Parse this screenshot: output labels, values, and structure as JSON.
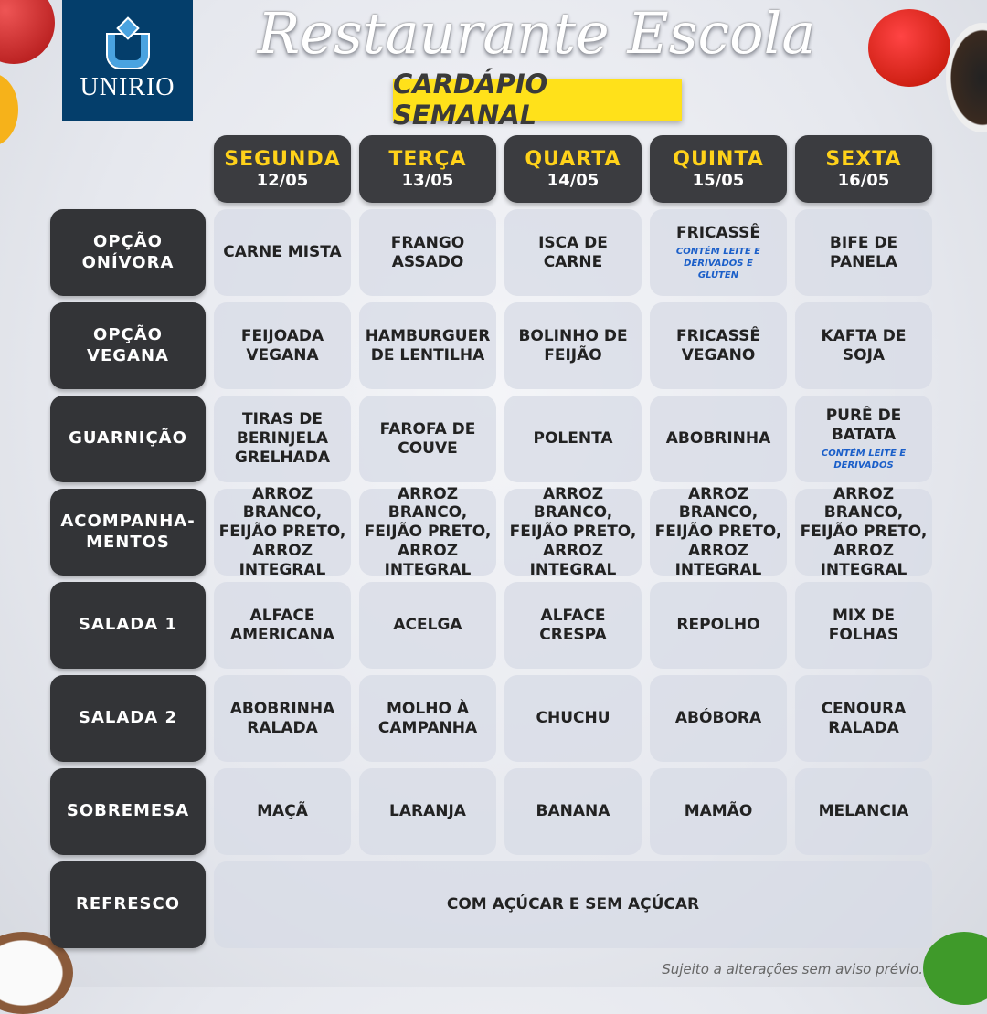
{
  "header": {
    "logo_text": "UNIRIO",
    "title": "Restaurante Escola",
    "subtitle": "CARDÁPIO SEMANAL"
  },
  "days": [
    {
      "name": "SEGUNDA",
      "date": "12/05"
    },
    {
      "name": "TERÇA",
      "date": "13/05"
    },
    {
      "name": "QUARTA",
      "date": "14/05"
    },
    {
      "name": "QUINTA",
      "date": "15/05"
    },
    {
      "name": "SEXTA",
      "date": "16/05"
    }
  ],
  "rows": [
    {
      "label": "OPÇÃO\nONÍVORA",
      "items": [
        {
          "text": "CARNE MISTA"
        },
        {
          "text": "FRANGO ASSADO"
        },
        {
          "text": "ISCA DE CARNE"
        },
        {
          "text": "FRICASSÊ",
          "note": "CONTÉM LEITE E DERIVADOS E GLÚTEN"
        },
        {
          "text": "BIFE DE PANELA"
        }
      ]
    },
    {
      "label": "OPÇÃO\nVEGANA",
      "items": [
        {
          "text": "FEIJOADA VEGANA"
        },
        {
          "text": "HAMBURGUER DE LENTILHA"
        },
        {
          "text": "BOLINHO DE FEIJÃO"
        },
        {
          "text": "FRICASSÊ VEGANO"
        },
        {
          "text": "KAFTA DE SOJA"
        }
      ]
    },
    {
      "label": "GUARNIÇÃO",
      "items": [
        {
          "text": "TIRAS DE BERINJELA GRELHADA"
        },
        {
          "text": "FAROFA DE COUVE"
        },
        {
          "text": "POLENTA"
        },
        {
          "text": "ABOBRINHA"
        },
        {
          "text": "PURÊ DE BATATA",
          "note": "CONTÉM LEITE E DERIVADOS"
        }
      ]
    },
    {
      "label": "ACOMPANHA-\nMENTOS",
      "items": [
        {
          "text": "ARROZ BRANCO, FEIJÃO PRETO, ARROZ INTEGRAL"
        },
        {
          "text": "ARROZ BRANCO, FEIJÃO PRETO, ARROZ INTEGRAL"
        },
        {
          "text": "ARROZ BRANCO, FEIJÃO PRETO, ARROZ INTEGRAL"
        },
        {
          "text": "ARROZ BRANCO, FEIJÃO PRETO, ARROZ INTEGRAL"
        },
        {
          "text": "ARROZ BRANCO, FEIJÃO PRETO, ARROZ INTEGRAL"
        }
      ]
    },
    {
      "label": "SALADA 1",
      "items": [
        {
          "text": "ALFACE AMERICANA"
        },
        {
          "text": "ACELGA"
        },
        {
          "text": "ALFACE CRESPA"
        },
        {
          "text": "REPOLHO"
        },
        {
          "text": "MIX DE FOLHAS"
        }
      ]
    },
    {
      "label": "SALADA 2",
      "items": [
        {
          "text": "ABOBRINHA RALADA"
        },
        {
          "text": "MOLHO À CAMPANHA"
        },
        {
          "text": "CHUCHU"
        },
        {
          "text": "ABÓBORA"
        },
        {
          "text": "CENOURA RALADA"
        }
      ]
    },
    {
      "label": "SOBREMESA",
      "items": [
        {
          "text": "MAÇÃ"
        },
        {
          "text": "LARANJA"
        },
        {
          "text": "BANANA"
        },
        {
          "text": "MAMÃO"
        },
        {
          "text": "MELANCIA"
        }
      ]
    }
  ],
  "refresco": {
    "label": "REFRESCO",
    "text": "COM AÇÚCAR E SEM AÇÚCAR"
  },
  "footer": "Sujeito a alterações sem aviso prévio."
}
